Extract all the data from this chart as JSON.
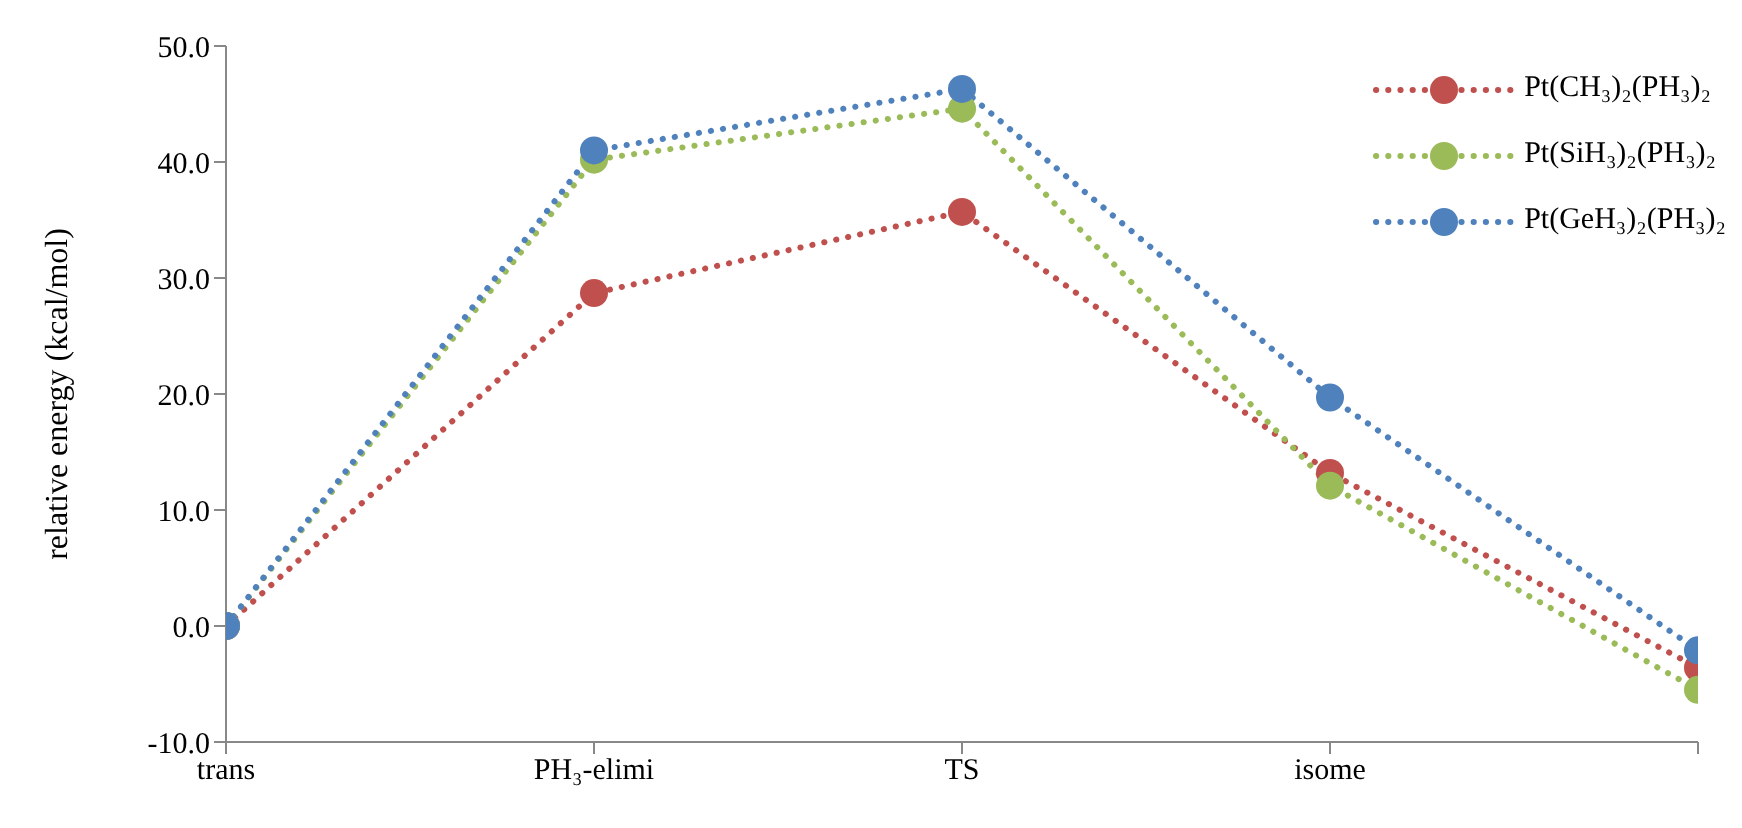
{
  "chart_data": {
    "type": "line",
    "ylabel": "relative energy (kcal/mol)",
    "categories": [
      "trans",
      "PH₃-elimi",
      "TS",
      "isome",
      null
    ],
    "series": [
      {
        "name": "Pt(CH₃)₂(PH₃)₂",
        "color": "#c0504d",
        "values": [
          0,
          28.7,
          35.7,
          13.2,
          -3.6
        ]
      },
      {
        "name": "Pt(SiH₃)₂(PH₃)₂",
        "color": "#9bbb59",
        "values": [
          0,
          40.2,
          44.6,
          12.1,
          -5.5
        ]
      },
      {
        "name": "Pt(GeH₃)₂(PH₃)₂",
        "color": "#4f81bd",
        "values": [
          0,
          41.0,
          46.3,
          19.7,
          -2.1
        ]
      }
    ],
    "ylim": [
      -10,
      50
    ],
    "yticks": [
      {
        "value": -10,
        "label": "-10.0"
      },
      {
        "value": 0,
        "label": "0.0"
      },
      {
        "value": 10,
        "label": "10.0"
      },
      {
        "value": 20,
        "label": "20.0"
      },
      {
        "value": 30,
        "label": "30.0"
      },
      {
        "value": 40,
        "label": "40.0"
      },
      {
        "value": 50,
        "label": "50.0"
      }
    ],
    "grid": false,
    "legend": "top right",
    "marker": "circle",
    "line_style": "dotted"
  }
}
